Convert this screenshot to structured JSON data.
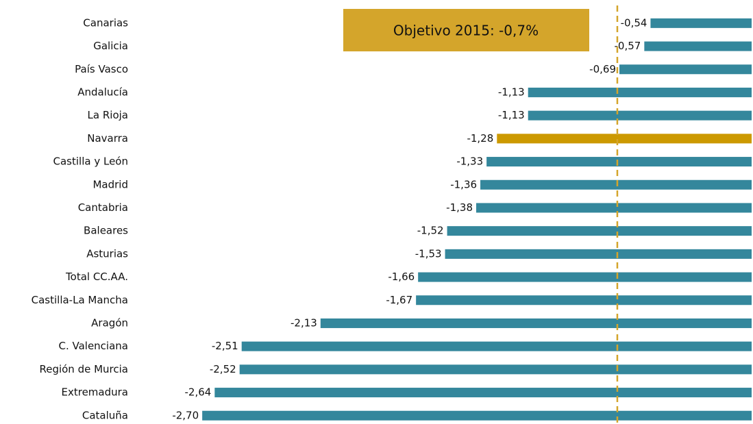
{
  "chart_data": {
    "type": "barh",
    "categories": [
      "Canarias",
      "Galicia",
      "País Vasco",
      "Andalucía",
      "La Rioja",
      "Navarra",
      "Castilla y León",
      "Madrid",
      "Cantabria",
      "Baleares",
      "Asturias",
      "Total CC.AA.",
      "Castilla-La Mancha",
      "Aragón",
      "C. Valenciana",
      "Región de Murcia",
      "Extremadura",
      "Cataluña"
    ],
    "values": [
      -0.54,
      -0.57,
      -0.69,
      -1.13,
      -1.13,
      -1.28,
      -1.33,
      -1.36,
      -1.38,
      -1.52,
      -1.53,
      -1.66,
      -1.67,
      -2.13,
      -2.51,
      -2.52,
      -2.64,
      -2.7
    ],
    "value_labels": [
      "-0,54",
      "-0,57",
      "-0,69",
      "-1,13",
      "-1,13",
      "-1,28",
      "-1,33",
      "-1,36",
      "-1,38",
      "-1,52",
      "-1,53",
      "-1,66",
      "-1,67",
      "-2,13",
      "-2,51",
      "-2,52",
      "-2,64",
      "-2,70"
    ],
    "colors": [
      "#34879c",
      "#34879c",
      "#34879c",
      "#34879c",
      "#34879c",
      "#cc9900",
      "#34879c",
      "#34879c",
      "#34879c",
      "#34879c",
      "#34879c",
      "#34879c",
      "#34879c",
      "#34879c",
      "#34879c",
      "#34879c",
      "#34879c",
      "#34879c"
    ],
    "xlim": [
      -2.75,
      0
    ],
    "reference": {
      "value": -0.7,
      "label": "Objetivo 2015: -0,7%",
      "color": "#d4a52b"
    }
  }
}
